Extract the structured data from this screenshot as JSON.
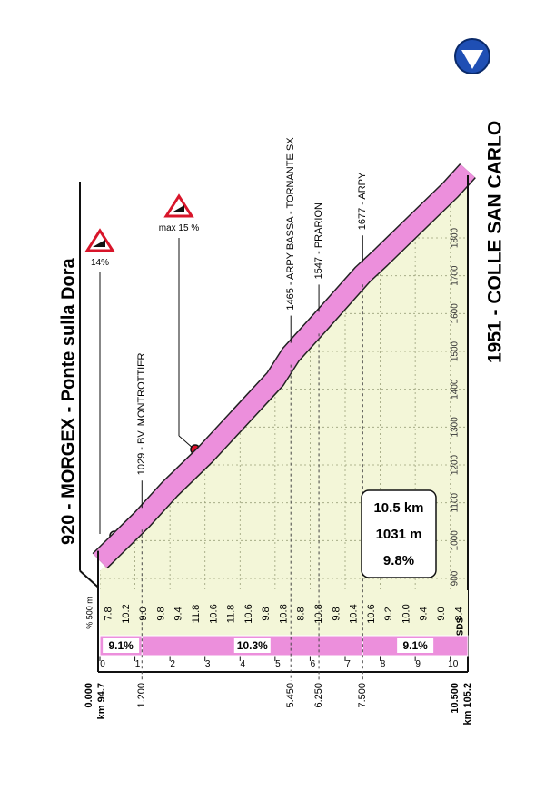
{
  "start_label": "920 - MORGEX - Ponte sulla Dora",
  "finish_label": "1951 - COLLE SAN CARLO",
  "chart_data": {
    "type": "area",
    "x": [
      0,
      1.2,
      2,
      3,
      4,
      5,
      5.45,
      6.25,
      7.5,
      8,
      9,
      10,
      10.5
    ],
    "values": [
      920,
      1029,
      1110,
      1200,
      1300,
      1400,
      1465,
      1547,
      1677,
      1720,
      1810,
      1900,
      1951
    ],
    "color": "#f3f6d8",
    "band_color": "#ec8fdc",
    "xlim": [
      0,
      10.5
    ],
    "ylim": [
      780,
      1980
    ],
    "xticks": [
      0,
      1,
      2,
      3,
      4,
      5,
      6,
      7,
      8,
      9,
      10
    ],
    "yticks": [
      900,
      1000,
      1100,
      1200,
      1300,
      1400,
      1500,
      1600,
      1700,
      1800
    ],
    "grid": true,
    "waypoints": [
      {
        "km": {
          "value": 1.2,
          "label": "1.200"
        },
        "label": "1029 - BV. MONTROTTIER"
      },
      {
        "km": {
          "value": 5.45,
          "label": "5.450"
        },
        "label": "1465 - ARPY BASSA - TORNANTE SX"
      },
      {
        "km": {
          "value": 6.25,
          "label": "6.250"
        },
        "label": "1547 - PRARION"
      },
      {
        "km": {
          "value": 7.5,
          "label": "7.500"
        },
        "label": "1677 - ARPY"
      }
    ],
    "start_distance": "0.000",
    "finish_distance": "10.500",
    "start_km": "km 94.7",
    "finish_km": "km 105.2",
    "gradient_header": "% 500 m",
    "gradients": [
      "7.8",
      "10.2",
      "9.0",
      "9.8",
      "9.4",
      "11.8",
      "10.6",
      "11.8",
      "10.6",
      "9.8",
      "10.8",
      "8.8",
      "10.8",
      "9.8",
      "10.4",
      "10.6",
      "9.2",
      "10.0",
      "9.4",
      "9.0",
      "8.4"
    ],
    "sections": [
      {
        "from": 0,
        "to": 1.2,
        "label": "9.1%"
      },
      {
        "from": 1.2,
        "to": 7.5,
        "label": "10.3%"
      },
      {
        "from": 7.5,
        "to": 10.5,
        "label": "9.1%"
      }
    ],
    "steep_labels": [
      "14%",
      "max 15 %"
    ],
    "summary": [
      "10.5 km",
      "1031 m",
      "9.8%"
    ],
    "logo": "SDS"
  }
}
